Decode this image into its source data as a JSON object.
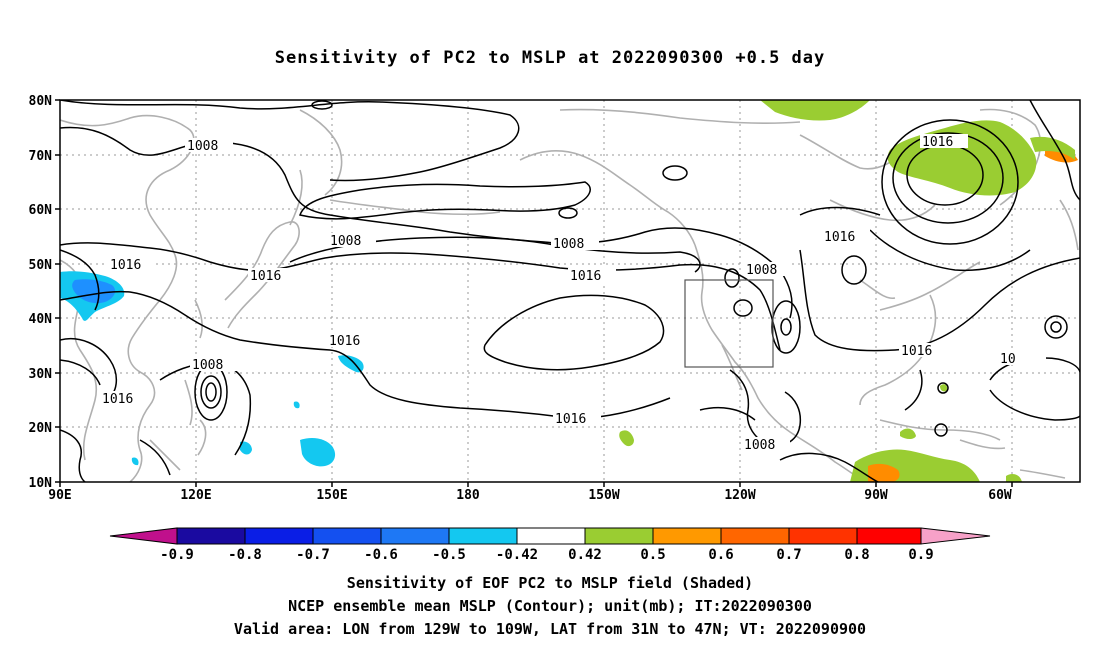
{
  "title": "Sensitivity of PC2 to MSLP at 2022090300 +0.5 day",
  "map": {
    "lat_ticks": [
      "80N",
      "70N",
      "60N",
      "50N",
      "40N",
      "30N",
      "20N",
      "10N"
    ],
    "lon_ticks": [
      "90E",
      "120E",
      "150E",
      "180",
      "150W",
      "120W",
      "90W",
      "60W"
    ],
    "contour_labels": [
      "1008",
      "1008",
      "1008",
      "1008",
      "1008",
      "1008",
      "1016",
      "1016",
      "1016",
      "1016",
      "1016",
      "1016",
      "1016",
      "1016",
      "1016",
      "10"
    ],
    "box": {
      "lon_from": "129W",
      "lon_to": "109W",
      "lat_from": "31N",
      "lat_to": "47N"
    },
    "colors": {
      "green": "#9acd32",
      "orange": "#ff8c00",
      "lightblue": "#14c8f0",
      "blue": "#1e90ff",
      "coast": "#b0b0b0"
    }
  },
  "colorbar": {
    "labels": [
      "-0.9",
      "-0.8",
      "-0.7",
      "-0.6",
      "-0.5",
      "-0.42",
      "0.42",
      "0.5",
      "0.6",
      "0.7",
      "0.8",
      "0.9"
    ],
    "colors": [
      "#1a0aa0",
      "#0a1ee6",
      "#1450f0",
      "#1e78f5",
      "#14c8f0",
      "#ffffff",
      "#9acd32",
      "#ff9900",
      "#ff6600",
      "#ff3300",
      "#ff0000"
    ],
    "left_end": "#c0108c",
    "right_end": "#f7a1c8"
  },
  "footer": {
    "line1": "Sensitivity of EOF PC2 to MSLP field (Shaded)",
    "line2": "NCEP ensemble mean MSLP (Contour); unit(mb); IT:2022090300",
    "line3": "Valid area: LON from 129W to 109W, LAT from 31N to 47N; VT: 2022090900"
  }
}
